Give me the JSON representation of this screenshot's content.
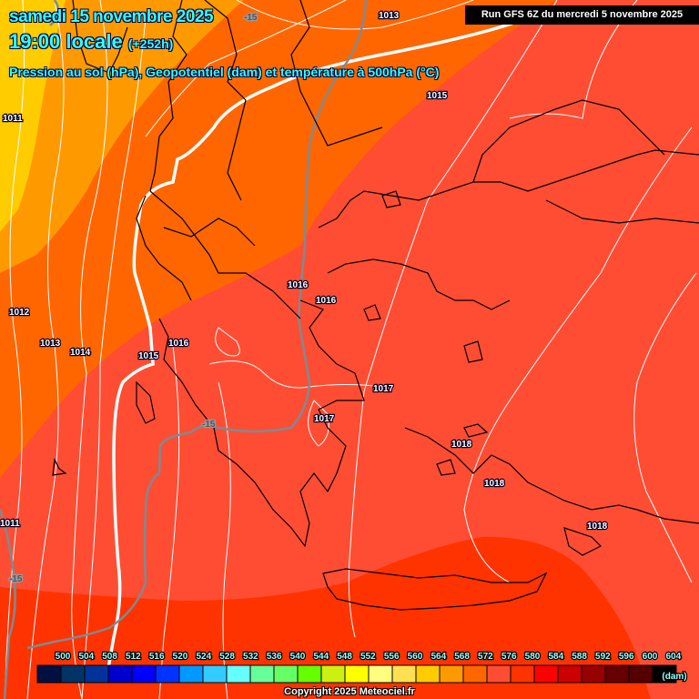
{
  "header": {
    "date": "samedi 15 novembre 2025",
    "time": "19:00 locale",
    "lead": "(+252h)",
    "parameter": "Pression au sol (hPa), Geopotentiel (dam) et température à 500hPa (°C)",
    "run": "Run GFS 6Z du mercredi 5 novembre 2025"
  },
  "pressure_labels": [
    "1013",
    "1015",
    "1011",
    "1012",
    "1013",
    "1014",
    "1015",
    "1016",
    "1016",
    "1016",
    "1017",
    "1017",
    "1018",
    "1018",
    "1018",
    "1011"
  ],
  "temperature_labels": [
    "-15",
    "-15",
    "-15"
  ],
  "legend": {
    "unit": "(dam)",
    "ticks": [
      "500",
      "504",
      "508",
      "512",
      "516",
      "520",
      "524",
      "528",
      "532",
      "536",
      "540",
      "544",
      "548",
      "552",
      "556",
      "560",
      "564",
      "568",
      "572",
      "576",
      "580",
      "584",
      "588",
      "592",
      "596",
      "600",
      "604"
    ],
    "colors": [
      "#001040",
      "#003366",
      "#003399",
      "#0000cc",
      "#0000ff",
      "#0033ff",
      "#0099ff",
      "#33ccff",
      "#66ffff",
      "#66ff99",
      "#66ff66",
      "#66ff00",
      "#ccf010",
      "#ffff00",
      "#ffff80",
      "#ffe050",
      "#ffcc00",
      "#ff9900",
      "#ff6600",
      "#ff4d33",
      "#ff3300",
      "#ff0000",
      "#cc0000",
      "#990000",
      "#660000",
      "#550000",
      "#000000"
    ]
  },
  "copyright": "Copyright 2025 Meteociel.fr"
}
